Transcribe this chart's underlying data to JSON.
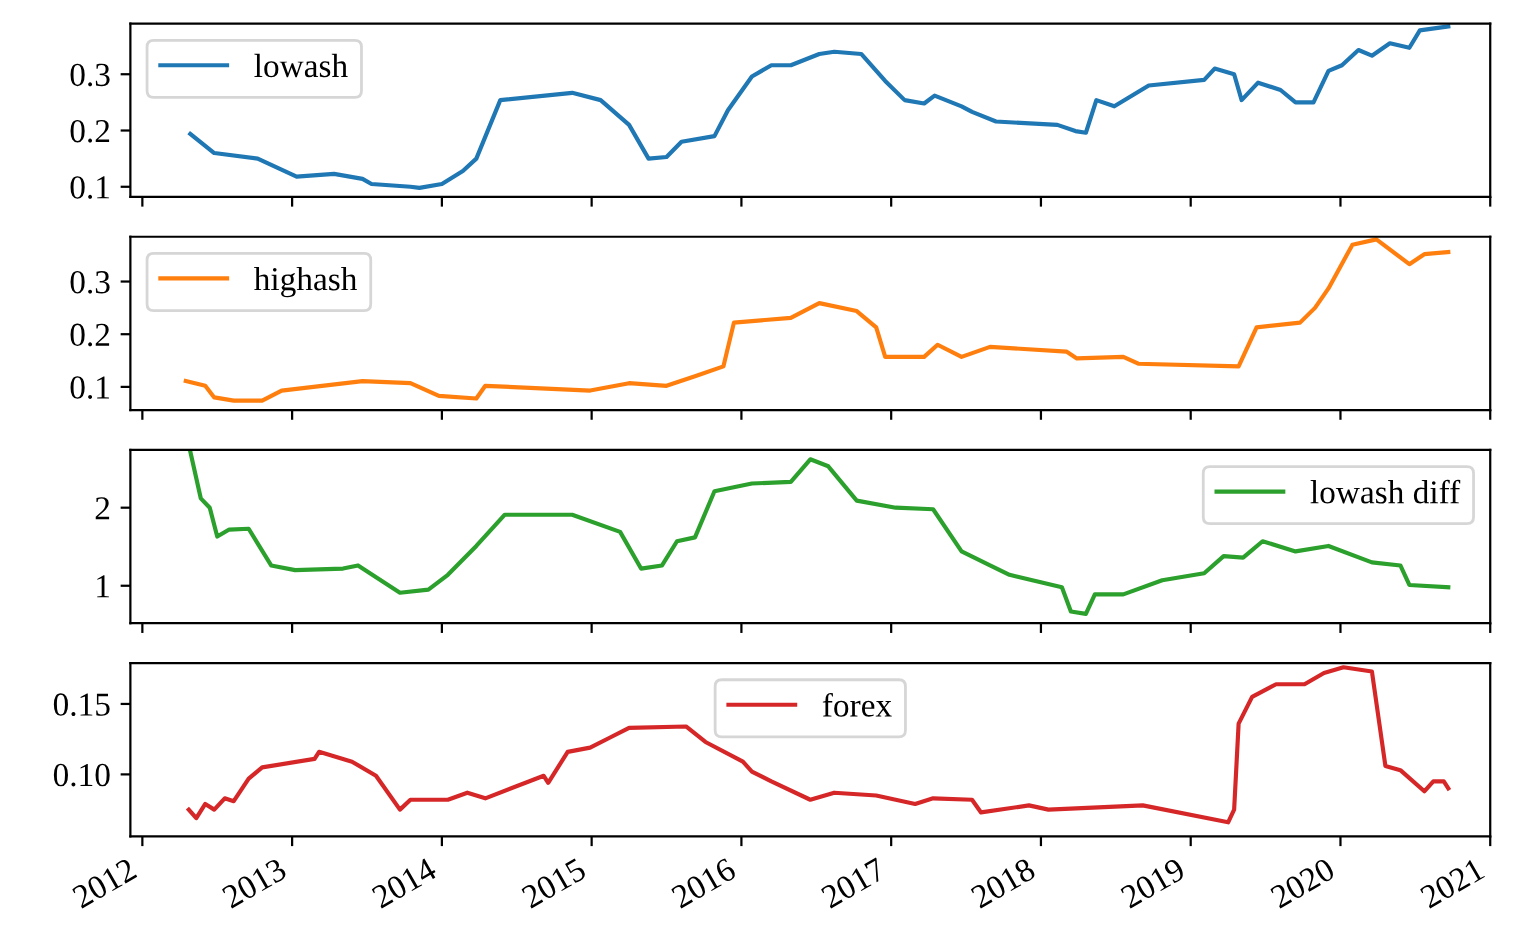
{
  "chart_data": [
    {
      "type": "line",
      "x": [
        2012.32,
        2012.48,
        2012.77,
        2013.03,
        2013.28,
        2013.47,
        2013.53,
        2013.79,
        2013.85,
        2014.0,
        2014.14,
        2014.23,
        2014.39,
        2014.87,
        2015.06,
        2015.25,
        2015.38,
        2015.5,
        2015.6,
        2015.82,
        2015.91,
        2016.07,
        2016.2,
        2016.33,
        2016.52,
        2016.62,
        2016.8,
        2016.96,
        2017.09,
        2017.22,
        2017.29,
        2017.47,
        2017.54,
        2017.7,
        2018.11,
        2018.23,
        2018.3,
        2018.37,
        2018.49,
        2018.72,
        2019.09,
        2019.16,
        2019.29,
        2019.34,
        2019.45,
        2019.6,
        2019.7,
        2019.82,
        2019.92,
        2020.01,
        2020.12,
        2020.21,
        2020.33,
        2020.46,
        2020.53,
        2020.72
      ],
      "series": [
        {
          "name": "lowash",
          "color": "#1f77b4",
          "values": [
            0.194,
            0.16,
            0.15,
            0.118,
            0.123,
            0.114,
            0.105,
            0.1,
            0.098,
            0.105,
            0.128,
            0.15,
            0.254,
            0.267,
            0.254,
            0.21,
            0.15,
            0.153,
            0.18,
            0.19,
            0.236,
            0.296,
            0.316,
            0.316,
            0.336,
            0.34,
            0.336,
            0.288,
            0.254,
            0.248,
            0.262,
            0.243,
            0.233,
            0.216,
            0.21,
            0.199,
            0.196,
            0.254,
            0.243,
            0.28,
            0.29,
            0.31,
            0.3,
            0.254,
            0.285,
            0.272,
            0.25,
            0.25,
            0.306,
            0.316,
            0.343,
            0.333,
            0.355,
            0.347,
            0.378,
            0.385
          ]
        }
      ],
      "xlim": [
        2011.92,
        2021.0
      ],
      "xticks": [
        2012,
        2013,
        2014,
        2015,
        2016,
        2017,
        2018,
        2019,
        2020,
        2021
      ],
      "ylim": [
        0.082,
        0.39
      ],
      "yticks": [
        0.1,
        0.2,
        0.3
      ],
      "legend": "upper left",
      "tick_labels": "y"
    },
    {
      "type": "line",
      "x": [
        2012.29,
        2012.42,
        2012.48,
        2012.61,
        2012.8,
        2012.93,
        2013.47,
        2013.79,
        2013.98,
        2014.23,
        2014.29,
        2014.99,
        2015.25,
        2015.5,
        2015.69,
        2015.88,
        2015.95,
        2016.33,
        2016.52,
        2016.77,
        2016.9,
        2016.96,
        2017.22,
        2017.31,
        2017.47,
        2017.66,
        2018.17,
        2018.24,
        2018.55,
        2018.65,
        2019.32,
        2019.44,
        2019.73,
        2019.83,
        2019.92,
        2020.08,
        2020.24,
        2020.46,
        2020.56,
        2020.72
      ],
      "series": [
        {
          "name": "highash",
          "color": "#ff7f0e",
          "values": [
            0.111,
            0.102,
            0.08,
            0.074,
            0.074,
            0.093,
            0.111,
            0.107,
            0.083,
            0.078,
            0.102,
            0.093,
            0.107,
            0.102,
            0.12,
            0.139,
            0.222,
            0.231,
            0.259,
            0.244,
            0.213,
            0.157,
            0.157,
            0.18,
            0.157,
            0.176,
            0.167,
            0.154,
            0.157,
            0.144,
            0.139,
            0.213,
            0.222,
            0.25,
            0.287,
            0.37,
            0.38,
            0.333,
            0.352,
            0.356
          ]
        }
      ],
      "xlim": [
        2011.92,
        2021.0
      ],
      "xticks": [
        2012,
        2013,
        2014,
        2015,
        2016,
        2017,
        2018,
        2019,
        2020,
        2021
      ],
      "ylim": [
        0.056,
        0.385
      ],
      "yticks": [
        0.1,
        0.2,
        0.3
      ],
      "legend": "upper left",
      "tick_labels": "y"
    },
    {
      "type": "line",
      "x": [
        2012.32,
        2012.39,
        2012.45,
        2012.5,
        2012.58,
        2012.71,
        2012.86,
        2013.02,
        2013.34,
        2013.44,
        2013.72,
        2013.91,
        2014.04,
        2014.23,
        2014.42,
        2014.87,
        2015.19,
        2015.33,
        2015.47,
        2015.57,
        2015.69,
        2015.82,
        2016.07,
        2016.33,
        2016.46,
        2016.58,
        2016.77,
        2017.03,
        2017.28,
        2017.47,
        2017.66,
        2017.79,
        2018.14,
        2018.2,
        2018.3,
        2018.36,
        2018.55,
        2018.81,
        2019.09,
        2019.22,
        2019.35,
        2019.48,
        2019.7,
        2019.92,
        2020.21,
        2020.4,
        2020.46,
        2020.72
      ],
      "series": [
        {
          "name": "lowash diff",
          "color": "#2ca02c",
          "values": [
            2.72,
            2.12,
            2.0,
            1.63,
            1.72,
            1.73,
            1.26,
            1.2,
            1.22,
            1.26,
            0.91,
            0.95,
            1.14,
            1.51,
            1.91,
            1.91,
            1.69,
            1.22,
            1.26,
            1.57,
            1.62,
            2.21,
            2.31,
            2.33,
            2.62,
            2.53,
            2.09,
            2.0,
            1.98,
            1.44,
            1.26,
            1.14,
            0.98,
            0.67,
            0.64,
            0.89,
            0.89,
            1.07,
            1.16,
            1.38,
            1.36,
            1.57,
            1.44,
            1.51,
            1.3,
            1.26,
            1.01,
            0.98
          ]
        }
      ],
      "xlim": [
        2011.92,
        2021.0
      ],
      "xticks": [
        2012,
        2013,
        2014,
        2015,
        2016,
        2017,
        2018,
        2019,
        2020,
        2021
      ],
      "ylim": [
        0.52,
        2.74
      ],
      "yticks": [
        1,
        2
      ],
      "legend": "upper right",
      "tick_labels": "y"
    },
    {
      "type": "line",
      "x": [
        2012.31,
        2012.36,
        2012.42,
        2012.48,
        2012.55,
        2012.61,
        2012.71,
        2012.8,
        2013.15,
        2013.18,
        2013.4,
        2013.56,
        2013.72,
        2013.79,
        2014.04,
        2014.17,
        2014.29,
        2014.68,
        2014.71,
        2014.84,
        2014.99,
        2015.12,
        2015.25,
        2015.63,
        2015.76,
        2016.01,
        2016.07,
        2016.2,
        2016.46,
        2016.62,
        2016.9,
        2017.16,
        2017.28,
        2017.54,
        2017.6,
        2017.92,
        2018.05,
        2018.68,
        2019.25,
        2019.29,
        2019.32,
        2019.41,
        2019.57,
        2019.76,
        2019.89,
        2020.02,
        2020.21,
        2020.3,
        2020.4,
        2020.56,
        2020.62,
        2020.69,
        2020.72
      ],
      "series": [
        {
          "name": "forex",
          "color": "#d62728",
          "values": [
            0.075,
            0.069,
            0.079,
            0.075,
            0.083,
            0.081,
            0.097,
            0.105,
            0.111,
            0.116,
            0.109,
            0.099,
            0.075,
            0.082,
            0.082,
            0.087,
            0.083,
            0.099,
            0.094,
            0.116,
            0.119,
            0.126,
            0.133,
            0.134,
            0.123,
            0.109,
            0.102,
            0.095,
            0.082,
            0.087,
            0.085,
            0.079,
            0.083,
            0.082,
            0.073,
            0.078,
            0.075,
            0.078,
            0.066,
            0.075,
            0.136,
            0.155,
            0.164,
            0.164,
            0.172,
            0.176,
            0.173,
            0.106,
            0.103,
            0.088,
            0.095,
            0.095,
            0.09
          ]
        }
      ],
      "xlim": [
        2011.92,
        2021.0
      ],
      "xticks": [
        2012,
        2013,
        2014,
        2015,
        2016,
        2017,
        2018,
        2019,
        2020,
        2021
      ],
      "ylim": [
        0.056,
        0.179
      ],
      "yticks": [
        {
          "value": 0.1,
          "label": "0.10"
        },
        {
          "value": 0.15,
          "label": "0.15"
        }
      ],
      "legend": "upper center"
    }
  ]
}
